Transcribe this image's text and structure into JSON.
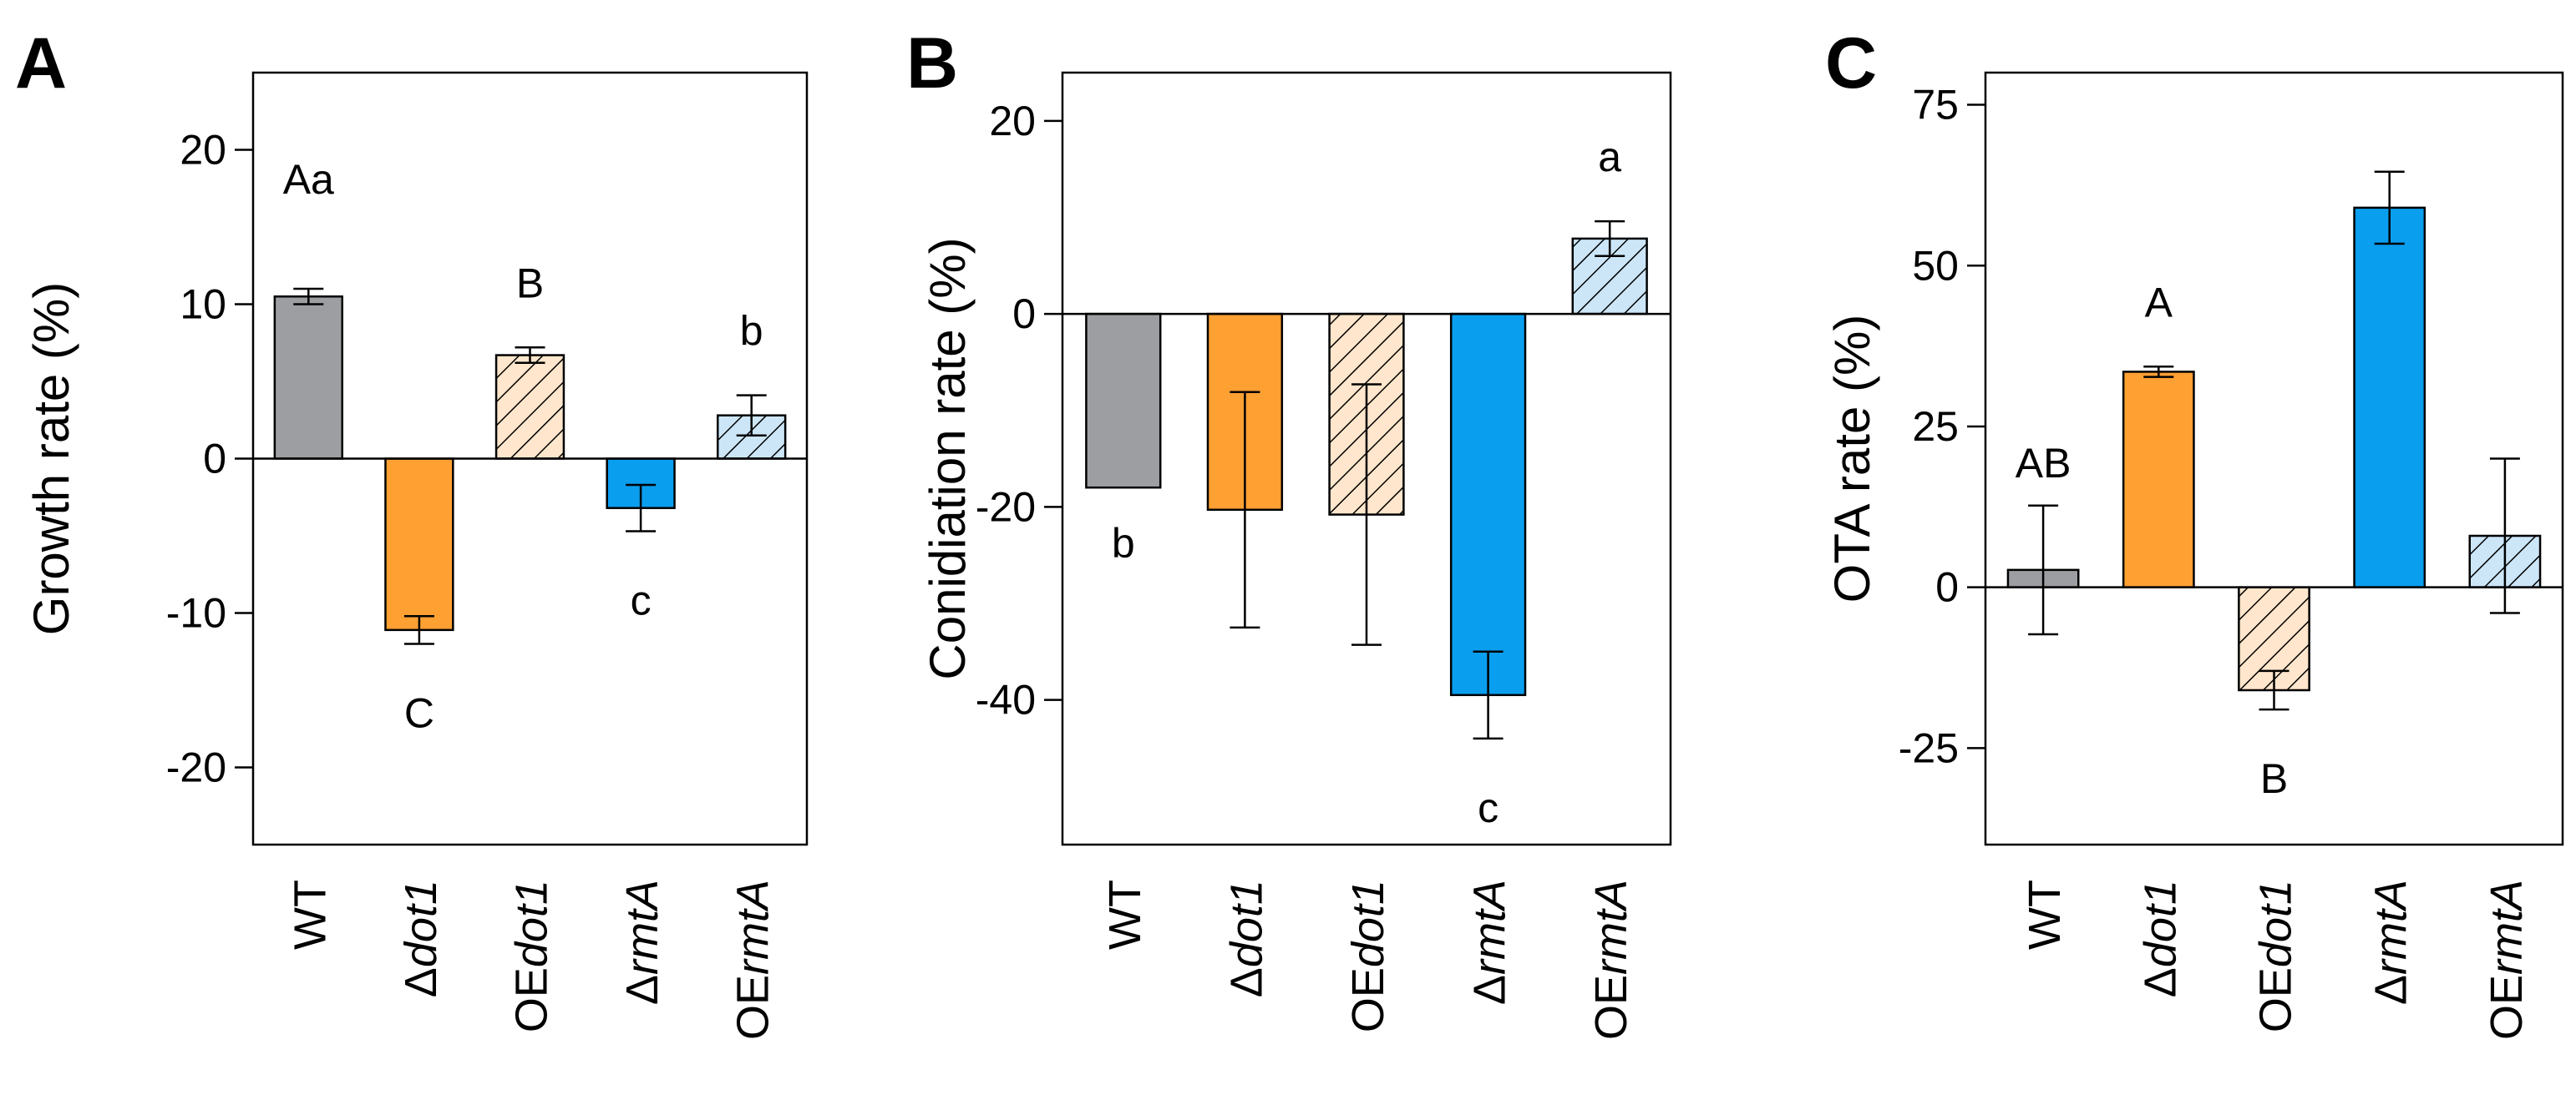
{
  "colors": {
    "wt": "#9c9ea2",
    "dot1": "#ffa033",
    "oe_dot1": "#ffe6cc",
    "rmta": "#0a9eef",
    "oe_rmta": "#cce6f8",
    "stroke": "#000000"
  },
  "chart_data": [
    {
      "type": "bar",
      "panel": "A",
      "ylabel": "Growth rate (%)",
      "ylim": [
        -25,
        25
      ],
      "yticks": [
        "20",
        "10",
        "0",
        "-10",
        "-20"
      ],
      "categories": [
        {
          "prefix": "",
          "italic": "",
          "plain": "WT"
        },
        {
          "prefix": "Δ",
          "italic": "dot1",
          "plain": ""
        },
        {
          "prefix": "OE",
          "italic": "dot1",
          "plain": ""
        },
        {
          "prefix": "Δ",
          "italic": "rmtA",
          "plain": ""
        },
        {
          "prefix": "OE",
          "italic": "rmtA",
          "plain": ""
        }
      ],
      "values": [
        10.5,
        -11.1,
        6.7,
        -3.2,
        2.8
      ],
      "errors": [
        0.5,
        0.9,
        0.5,
        1.5,
        1.3
      ],
      "significance": [
        "Aa",
        "C",
        "B",
        "c",
        "b"
      ]
    },
    {
      "type": "bar",
      "panel": "B",
      "ylabel": "Conidiation rate (%)",
      "ylim": [
        -55,
        25
      ],
      "yticks": [
        "20",
        "0",
        "-20",
        "-40"
      ],
      "categories": [
        {
          "prefix": "",
          "italic": "",
          "plain": "WT"
        },
        {
          "prefix": "Δ",
          "italic": "dot1",
          "plain": ""
        },
        {
          "prefix": "OE",
          "italic": "dot1",
          "plain": ""
        },
        {
          "prefix": "Δ",
          "italic": "rmtA",
          "plain": ""
        },
        {
          "prefix": "OE",
          "italic": "rmtA",
          "plain": ""
        }
      ],
      "values": [
        -18,
        -20.3,
        -20.8,
        -39.5,
        7.8
      ],
      "errors": [
        0,
        12.2,
        13.5,
        4.5,
        1.8
      ],
      "significance": [
        "b",
        "",
        "",
        "c",
        "a"
      ]
    },
    {
      "type": "bar",
      "panel": "C",
      "ylabel": "OTA rate (%)",
      "ylim": [
        -40,
        80
      ],
      "yticks": [
        "75",
        "50",
        "25",
        "0",
        "-25"
      ],
      "categories": [
        {
          "prefix": "",
          "italic": "",
          "plain": "WT"
        },
        {
          "prefix": "Δ",
          "italic": "dot1",
          "plain": ""
        },
        {
          "prefix": "OE",
          "italic": "dot1",
          "plain": ""
        },
        {
          "prefix": "Δ",
          "italic": "rmtA",
          "plain": ""
        },
        {
          "prefix": "OE",
          "italic": "rmtA",
          "plain": ""
        }
      ],
      "values": [
        2.7,
        33.5,
        -16,
        59,
        8
      ],
      "errors": [
        10,
        0.8,
        3,
        5.6,
        12
      ],
      "significance": [
        "AB",
        "A",
        "B",
        "",
        ""
      ]
    }
  ]
}
